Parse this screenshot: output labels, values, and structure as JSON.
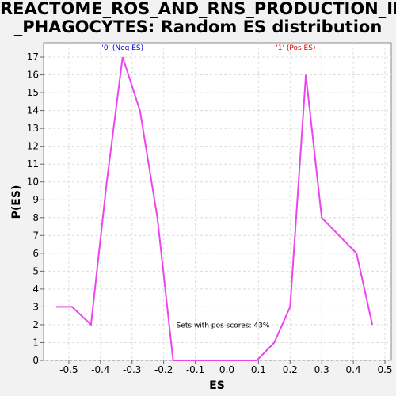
{
  "chart_data": {
    "type": "line",
    "title_lines": [
      "REACTOME_ROS_AND_RNS_PRODUCTION_IN",
      "_PHAGOCYTES: Random ES distribution"
    ],
    "xlabel": "ES",
    "ylabel": "P(ES)",
    "xlim": [
      -0.58,
      0.52
    ],
    "ylim": [
      0,
      17.8
    ],
    "x_ticks": [
      -0.5,
      -0.4,
      -0.3,
      -0.2,
      -0.1,
      0.0,
      0.1,
      0.2,
      0.3,
      0.4,
      0.5
    ],
    "x_tick_labels": [
      "-0.5",
      "-0.4",
      "-0.3",
      "-0.2",
      "-0.1",
      "0.0",
      "0.1",
      "0.2",
      "0.3",
      "0.4",
      "0.5"
    ],
    "y_ticks": [
      0,
      1,
      2,
      3,
      4,
      5,
      6,
      7,
      8,
      9,
      10,
      11,
      12,
      13,
      14,
      15,
      16,
      17
    ],
    "y_tick_labels": [
      "0",
      "1",
      "2",
      "3",
      "4",
      "5",
      "6",
      "7",
      "8",
      "9",
      "10",
      "11",
      "12",
      "13",
      "14",
      "15",
      "16",
      "17"
    ],
    "grid": true,
    "series": [
      {
        "color": "#ee44ee",
        "x": [
          -0.54,
          -0.49,
          -0.43,
          -0.38,
          -0.33,
          -0.275,
          -0.22,
          -0.17,
          -0.12,
          -0.06,
          -0.01,
          0.045,
          0.095,
          0.15,
          0.2,
          0.25,
          0.3,
          0.355,
          0.41,
          0.46
        ],
        "y": [
          3,
          3,
          2,
          10,
          17,
          14,
          8,
          0,
          0,
          0,
          0,
          0,
          0,
          1,
          3,
          16,
          8,
          7,
          6,
          2
        ]
      }
    ],
    "annotations": [
      {
        "text": "'0' (Neg ES)",
        "x": -0.33,
        "y": 17.4,
        "color": "#0000dd"
      },
      {
        "text": "'1' (Pos ES)",
        "x": 0.155,
        "y": 17.4,
        "color": "#dd0000"
      },
      {
        "text": "Sets with pos scores: 43%",
        "x": -0.16,
        "y": 1.85,
        "color": "#000000"
      }
    ]
  }
}
